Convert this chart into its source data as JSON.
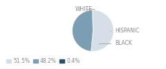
{
  "labels": [
    "WHITE",
    "HISPANIC",
    "BLACK"
  ],
  "values": [
    51.5,
    48.2,
    0.4
  ],
  "colors": [
    "#d6dfe8",
    "#7b9eb5",
    "#2d5068"
  ],
  "legend_labels": [
    "51.5%",
    "48.2%",
    "0.4%"
  ],
  "label_fontsize": 5.5,
  "legend_fontsize": 5.5,
  "startangle": 90,
  "figsize": [
    2.4,
    1.0
  ],
  "dpi": 100,
  "label_color": "#888888",
  "line_color": "#aaaaaa"
}
